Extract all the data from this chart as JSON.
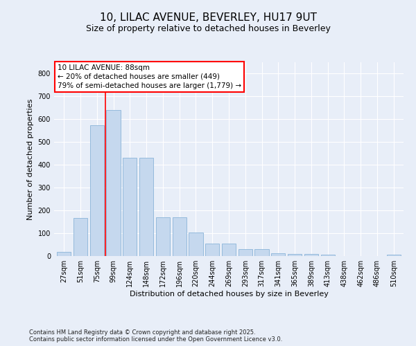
{
  "title1": "10, LILAC AVENUE, BEVERLEY, HU17 9UT",
  "title2": "Size of property relative to detached houses in Beverley",
  "xlabel": "Distribution of detached houses by size in Beverley",
  "ylabel": "Number of detached properties",
  "categories": [
    "27sqm",
    "51sqm",
    "75sqm",
    "99sqm",
    "124sqm",
    "148sqm",
    "172sqm",
    "196sqm",
    "220sqm",
    "244sqm",
    "269sqm",
    "293sqm",
    "317sqm",
    "341sqm",
    "365sqm",
    "389sqm",
    "413sqm",
    "438sqm",
    "462sqm",
    "486sqm",
    "510sqm"
  ],
  "values": [
    18,
    168,
    575,
    640,
    430,
    430,
    170,
    170,
    103,
    55,
    55,
    30,
    30,
    12,
    10,
    10,
    5,
    0,
    0,
    0,
    5
  ],
  "bar_color": "#c5d8ee",
  "bar_edgecolor": "#8ab4d8",
  "vline_x": 2.5,
  "vline_color": "red",
  "annotation_text": "10 LILAC AVENUE: 88sqm\n← 20% of detached houses are smaller (449)\n79% of semi-detached houses are larger (1,779) →",
  "ylim": [
    0,
    850
  ],
  "yticks": [
    0,
    100,
    200,
    300,
    400,
    500,
    600,
    700,
    800
  ],
  "bg_color": "#e8eef8",
  "plot_bg_color": "#e8eef8",
  "footer_text": "Contains HM Land Registry data © Crown copyright and database right 2025.\nContains public sector information licensed under the Open Government Licence v3.0.",
  "title1_fontsize": 11,
  "title2_fontsize": 9,
  "axis_label_fontsize": 8,
  "tick_fontsize": 7,
  "annotation_fontsize": 7.5,
  "footer_fontsize": 6
}
